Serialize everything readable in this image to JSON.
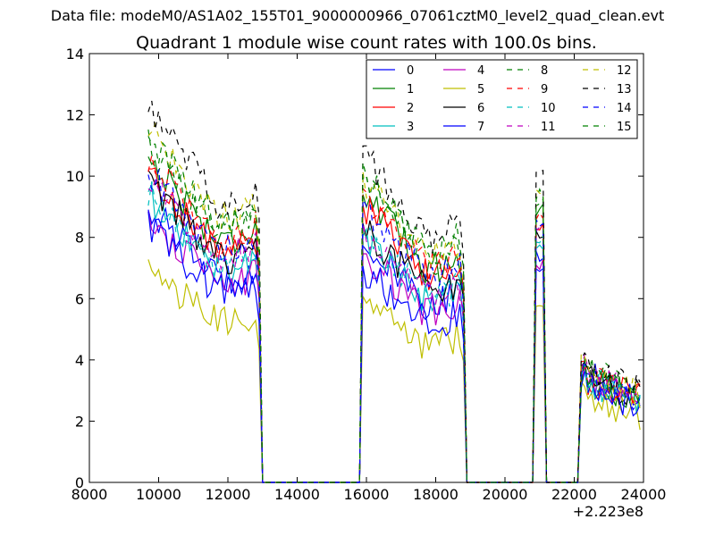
{
  "chart_data": {
    "type": "line",
    "suptitle": "Data file: modeM0/AS1A02_155T01_9000000966_07061cztM0_level2_quad_clean.evt",
    "title": "Quadrant 1 module wise count rates with 100.0s bins.",
    "xlabel": "",
    "ylabel": "",
    "x_offset_label": "+2.223e8",
    "xlim": [
      8000,
      24000
    ],
    "ylim": [
      0,
      14
    ],
    "xticks": [
      "8000",
      "10000",
      "12000",
      "14000",
      "16000",
      "18000",
      "20000",
      "22000",
      "24000"
    ],
    "yticks": [
      "0",
      "2",
      "4",
      "6",
      "8",
      "10",
      "12",
      "14"
    ],
    "legend_position": "top-right",
    "segments": [
      {
        "start": 9700,
        "end": 12900
      },
      {
        "start": 15900,
        "end": 18800
      },
      {
        "start": 20900,
        "end": 21100
      },
      {
        "start": 22200,
        "end": 23900
      }
    ],
    "series": [
      {
        "name": "0",
        "color": "#0000ff",
        "style": "solid",
        "levels": [
          7.6,
          6.6,
          7.4,
          3.1,
          8.2
        ]
      },
      {
        "name": "1",
        "color": "#008000",
        "style": "solid",
        "levels": [
          9.0,
          8.0,
          8.9,
          3.0,
          9.2
        ]
      },
      {
        "name": "2",
        "color": "#ff0000",
        "style": "solid",
        "levels": [
          8.6,
          7.7,
          8.4,
          3.0,
          8.9
        ]
      },
      {
        "name": "3",
        "color": "#00bfbf",
        "style": "solid",
        "levels": [
          7.9,
          6.8,
          7.7,
          2.9,
          7.8
        ]
      },
      {
        "name": "4",
        "color": "#bf00bf",
        "style": "solid",
        "levels": [
          7.3,
          6.3,
          7.1,
          3.0,
          7.4
        ]
      },
      {
        "name": "5",
        "color": "#bfbf00",
        "style": "solid",
        "levels": [
          5.9,
          5.1,
          5.7,
          2.4,
          6.2
        ]
      },
      {
        "name": "6",
        "color": "#000000",
        "style": "solid",
        "levels": [
          8.3,
          7.1,
          8.1,
          3.1,
          8.7
        ]
      },
      {
        "name": "7",
        "color": "#0000ff",
        "style": "solid",
        "levels": [
          7.1,
          5.9,
          6.8,
          2.8,
          7.3
        ]
      },
      {
        "name": "8",
        "color": "#008000",
        "style": "dashed",
        "levels": [
          9.3,
          8.3,
          9.2,
          3.2,
          9.6
        ]
      },
      {
        "name": "9",
        "color": "#ff0000",
        "style": "dashed",
        "levels": [
          9.0,
          8.0,
          8.7,
          3.1,
          9.0
        ]
      },
      {
        "name": "10",
        "color": "#00bfbf",
        "style": "dashed",
        "levels": [
          8.0,
          6.9,
          7.9,
          3.0,
          8.0
        ]
      },
      {
        "name": "11",
        "color": "#bf00bf",
        "style": "dashed",
        "levels": [
          8.4,
          7.0,
          8.2,
          3.3,
          8.1
        ]
      },
      {
        "name": "12",
        "color": "#bfbf00",
        "style": "dashed",
        "levels": [
          9.8,
          8.4,
          9.5,
          3.2,
          10.0
        ]
      },
      {
        "name": "13",
        "color": "#000000",
        "style": "dashed",
        "levels": [
          10.4,
          9.1,
          10.0,
          3.3,
          10.6
        ]
      },
      {
        "name": "14",
        "color": "#0000ff",
        "style": "dashed",
        "levels": [
          8.6,
          7.6,
          8.4,
          3.1,
          8.6
        ]
      },
      {
        "name": "15",
        "color": "#008000",
        "style": "dashed",
        "levels": [
          9.6,
          8.6,
          9.4,
          3.1,
          9.7
        ]
      }
    ]
  }
}
